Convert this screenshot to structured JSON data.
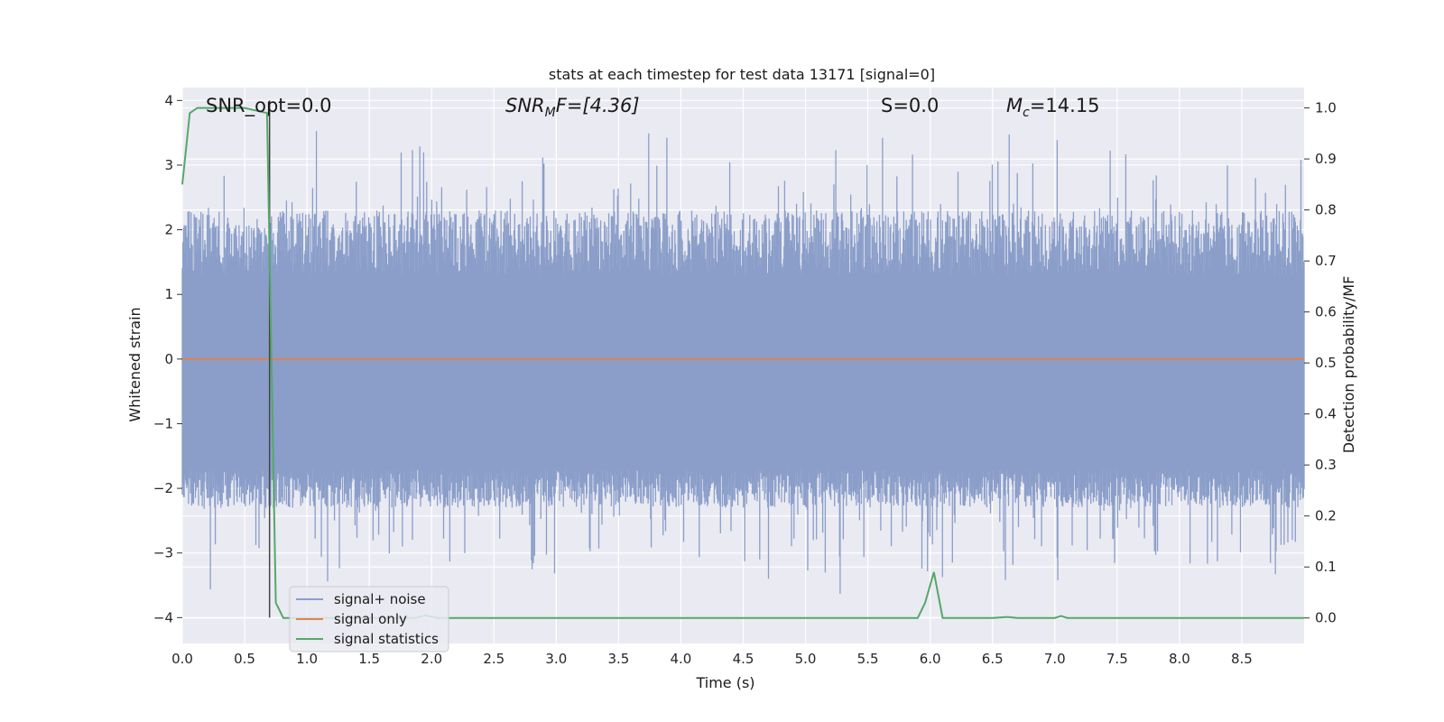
{
  "chart_data": {
    "type": "line",
    "title": "stats at each timestep for test data 13171 [signal=0]",
    "xlabel": "Time (s)",
    "ylabel": "Whitened strain",
    "y2label": "Detection probability/MF",
    "xlim": [
      0,
      9.0
    ],
    "ylim": [
      -4.4,
      4.2
    ],
    "y2lim": [
      -0.05,
      1.04
    ],
    "xticks": [
      "0.0",
      "0.5",
      "1.0",
      "1.5",
      "2.0",
      "2.5",
      "3.0",
      "3.5",
      "4.0",
      "4.5",
      "5.0",
      "5.5",
      "6.0",
      "6.5",
      "7.0",
      "7.5",
      "8.0",
      "8.5"
    ],
    "yticks": [
      "4",
      "3",
      "2",
      "1",
      "0",
      "−1",
      "−2",
      "−3",
      "−4"
    ],
    "y2ticks": [
      "1.0",
      "0.9",
      "0.8",
      "0.7",
      "0.6",
      "0.5",
      "0.4",
      "0.3",
      "0.2",
      "0.1",
      "0.0"
    ],
    "grid": true,
    "legend_position": "lower-left",
    "annotations": {
      "snr_opt": "SNR_opt=0.0",
      "snr_mf_main": "SNR",
      "snr_mf_sub": "M",
      "snr_mf_rest": "F=[4.36]",
      "s": "S=0.0",
      "mc_main": "M",
      "mc_sub": "c",
      "mc_rest": "=14.15"
    },
    "vertical_line_x": 0.7,
    "series": [
      {
        "name": "signal+ noise",
        "color": "#8a9ec9",
        "axis": "left",
        "envelope_upper": 1.3,
        "envelope_lower": -1.7,
        "spike_range": [
          -4.0,
          3.6
        ],
        "sample_count": 1800
      },
      {
        "name": "signal only",
        "color": "#dd8452",
        "axis": "left",
        "x": [
          0,
          9.0
        ],
        "y": [
          0,
          0
        ]
      },
      {
        "name": "signal statistics",
        "color": "#55a868",
        "axis": "right",
        "x": [
          0.0,
          0.06,
          0.12,
          0.5,
          0.68,
          0.75,
          0.81,
          1.0,
          1.87,
          1.95,
          2.05,
          5.9,
          5.96,
          6.03,
          6.1,
          6.5,
          6.62,
          6.7,
          7.0,
          7.05,
          7.1,
          7.2,
          8.5,
          9.0
        ],
        "y": [
          0.85,
          0.99,
          1.0,
          1.0,
          0.99,
          0.03,
          0.0,
          0.0,
          0.0,
          0.005,
          0.0,
          0.0,
          0.03,
          0.09,
          0.0,
          0.0,
          0.002,
          0.0,
          0.0,
          0.004,
          0.0,
          0.0,
          0.0,
          0.0
        ]
      }
    ]
  }
}
